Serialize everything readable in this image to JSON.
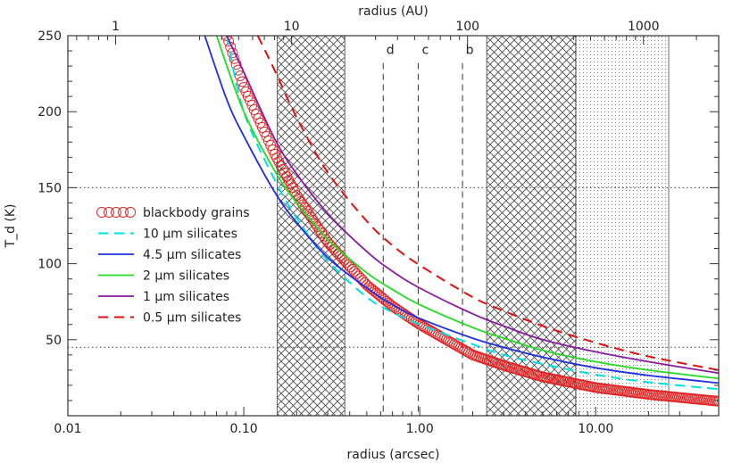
{
  "chart_data": {
    "type": "line",
    "xlabel": "radius (arcsec)",
    "x2label": "radius (AU)",
    "ylabel": "T_d (K)",
    "xscale": "log",
    "xlim": [
      0.01,
      50
    ],
    "ylim": [
      0,
      250
    ],
    "x2_per_x": 53.5,
    "xticks": [
      {
        "value": 0.01,
        "label": "0.01"
      },
      {
        "value": 0.1,
        "label": "0.10"
      },
      {
        "value": 1,
        "label": "1.00"
      },
      {
        "value": 10,
        "label": "10.00"
      }
    ],
    "x2ticks": [
      {
        "value": 1,
        "label": "1"
      },
      {
        "value": 10,
        "label": "10"
      },
      {
        "value": 100,
        "label": "100"
      },
      {
        "value": 1000,
        "label": "1000"
      }
    ],
    "yticks": [
      {
        "value": 50,
        "label": "50"
      },
      {
        "value": 100,
        "label": "100"
      },
      {
        "value": 150,
        "label": "150"
      },
      {
        "value": 200,
        "label": "200"
      },
      {
        "value": 250,
        "label": "250"
      }
    ],
    "hlines": [
      150,
      45
    ],
    "vlines": [
      {
        "x": 0.62,
        "label": "d"
      },
      {
        "x": 0.98,
        "label": "c"
      },
      {
        "x": 1.75,
        "label": "b"
      }
    ],
    "shaded_regions": [
      {
        "x": [
          0.155,
          0.375
        ],
        "pattern": "crosshatch"
      },
      {
        "x": [
          2.4,
          7.7
        ],
        "pattern": "crosshatch"
      },
      {
        "x": [
          7.7,
          26
        ],
        "pattern": "dots"
      }
    ],
    "legend_position": "left",
    "series": [
      {
        "name": "blackbody grains",
        "style": "circles",
        "color": "#e02020",
        "points": [
          [
            0.08,
            250
          ],
          [
            0.1,
            216
          ],
          [
            0.15,
            172
          ],
          [
            0.2,
            145
          ],
          [
            0.3,
            114
          ],
          [
            0.5,
            86
          ],
          [
            0.7,
            72
          ],
          [
            1,
            60
          ],
          [
            2,
            40
          ],
          [
            3,
            33
          ],
          [
            5,
            25.5
          ],
          [
            10,
            18.5
          ],
          [
            20,
            14
          ],
          [
            50,
            9.5
          ]
        ]
      },
      {
        "name": "10 µm silicates",
        "style": "dashed",
        "color": "#00e0e0",
        "points": [
          [
            0.08,
            250
          ],
          [
            0.1,
            200
          ],
          [
            0.15,
            155
          ],
          [
            0.2,
            130
          ],
          [
            0.3,
            102
          ],
          [
            0.5,
            78
          ],
          [
            0.7,
            68
          ],
          [
            1,
            60
          ],
          [
            2,
            47
          ],
          [
            3,
            40
          ],
          [
            5,
            34
          ],
          [
            10,
            27
          ],
          [
            20,
            22
          ],
          [
            50,
            17.5
          ]
        ]
      },
      {
        "name": "4.5 µm silicates",
        "style": "solid",
        "color": "#1f2fe0",
        "points": [
          [
            0.06,
            250
          ],
          [
            0.08,
            208
          ],
          [
            0.1,
            184
          ],
          [
            0.15,
            147
          ],
          [
            0.2,
            127
          ],
          [
            0.3,
            104
          ],
          [
            0.5,
            84
          ],
          [
            0.7,
            73
          ],
          [
            1,
            64
          ],
          [
            2,
            51
          ],
          [
            3,
            45
          ],
          [
            5,
            38.5
          ],
          [
            10,
            31.5
          ],
          [
            20,
            26.5
          ],
          [
            50,
            21.5
          ]
        ]
      },
      {
        "name": "2 µm silicates",
        "style": "solid",
        "color": "#22dd22",
        "points": [
          [
            0.07,
            250
          ],
          [
            0.1,
            200
          ],
          [
            0.15,
            161
          ],
          [
            0.2,
            140
          ],
          [
            0.3,
            116
          ],
          [
            0.5,
            94
          ],
          [
            0.7,
            83
          ],
          [
            1,
            73
          ],
          [
            2,
            58
          ],
          [
            3,
            51
          ],
          [
            5,
            43
          ],
          [
            10,
            35.5
          ],
          [
            20,
            30
          ],
          [
            50,
            24.5
          ]
        ]
      },
      {
        "name": "1 µm silicates",
        "style": "solid",
        "color": "#8a1aa0",
        "points": [
          [
            0.08,
            250
          ],
          [
            0.1,
            226
          ],
          [
            0.15,
            182
          ],
          [
            0.2,
            159
          ],
          [
            0.3,
            133
          ],
          [
            0.5,
            108
          ],
          [
            0.7,
            95
          ],
          [
            1,
            84
          ],
          [
            2,
            67
          ],
          [
            3,
            59
          ],
          [
            5,
            50
          ],
          [
            10,
            42
          ],
          [
            20,
            35.5
          ],
          [
            50,
            28
          ]
        ]
      },
      {
        "name": "0.5 µm silicates",
        "style": "dashed",
        "color": "#e01010",
        "points": [
          [
            0.12,
            250
          ],
          [
            0.15,
            227
          ],
          [
            0.2,
            196
          ],
          [
            0.3,
            160
          ],
          [
            0.5,
            128
          ],
          [
            0.7,
            112
          ],
          [
            1,
            99
          ],
          [
            2,
            78
          ],
          [
            3,
            69
          ],
          [
            5,
            59
          ],
          [
            10,
            48
          ],
          [
            20,
            39
          ],
          [
            50,
            30
          ]
        ]
      }
    ]
  }
}
